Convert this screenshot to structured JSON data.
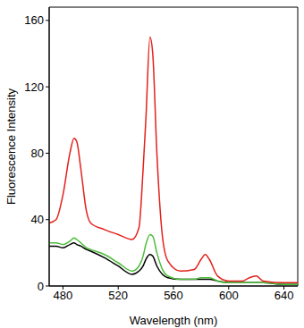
{
  "chart_data": {
    "type": "line",
    "x_label": "Wavelength (nm)",
    "y_label": "Fluorescence Intensity",
    "x": [
      470,
      475,
      480,
      485,
      488,
      490,
      493,
      497,
      500,
      510,
      520,
      530,
      535,
      538,
      540,
      543,
      545,
      548,
      552,
      556,
      565,
      575,
      580,
      583,
      586,
      592,
      600,
      610,
      615,
      620,
      625,
      640,
      650
    ],
    "series": [
      {
        "color": "#000000",
        "values": [
          24,
          24,
          23,
          25,
          26,
          25,
          24,
          22,
          21,
          17,
          12,
          7,
          9,
          12,
          16,
          19,
          18,
          12,
          7,
          5,
          4,
          4,
          4,
          4,
          4,
          3,
          2,
          2,
          2,
          2,
          2,
          1,
          1
        ]
      },
      {
        "color": "#4dbd3a",
        "values": [
          26,
          26,
          25,
          27,
          29,
          28,
          26,
          23,
          22,
          19,
          14,
          9,
          12,
          18,
          25,
          31,
          30,
          20,
          10,
          6,
          4,
          4,
          5,
          5,
          5,
          3,
          2,
          2,
          2,
          2,
          2,
          1,
          1
        ]
      },
      {
        "color": "#e3211c",
        "values": [
          38,
          40,
          55,
          80,
          89,
          87,
          70,
          45,
          38,
          34,
          31,
          28,
          35,
          70,
          100,
          150,
          140,
          80,
          30,
          15,
          9,
          10,
          16,
          19,
          16,
          6,
          3,
          3,
          5,
          6,
          3,
          2,
          2
        ]
      }
    ],
    "xlim": [
      470,
      650
    ],
    "ylim": [
      0,
      168
    ],
    "xticks": [
      480,
      520,
      560,
      600,
      640
    ],
    "yticks": [
      0,
      40,
      80,
      120,
      160
    ],
    "grid": false
  }
}
